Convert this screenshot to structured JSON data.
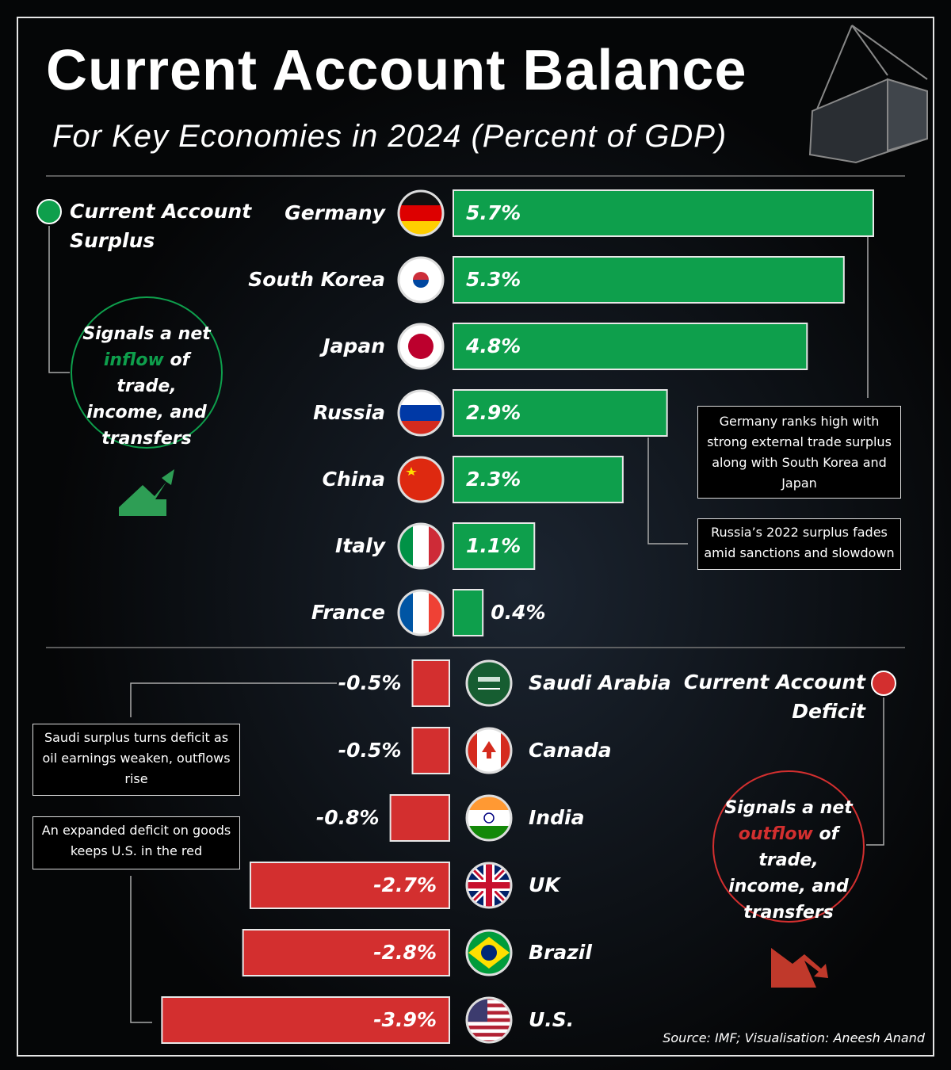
{
  "chart_data": {
    "type": "bar",
    "title": "Current Account Balance",
    "subtitle": "For Key Economies in 2024 (Percent of GDP)",
    "categories": [
      "Germany",
      "South Korea",
      "Japan",
      "Russia",
      "China",
      "Italy",
      "France",
      "Saudi Arabia",
      "Canada",
      "India",
      "UK",
      "Brazil",
      "U.S."
    ],
    "values": [
      5.7,
      5.3,
      4.8,
      2.9,
      2.3,
      1.1,
      0.4,
      -0.5,
      -0.5,
      -0.8,
      -2.7,
      -2.8,
      -3.9
    ],
    "value_labels": [
      "5.7%",
      "5.3%",
      "4.8%",
      "2.9%",
      "2.3%",
      "1.1%",
      "0.4%",
      "-0.5%",
      "-0.5%",
      "-0.8%",
      "-2.7%",
      "-2.8%",
      "-3.9%"
    ],
    "positive_color": "#0e9f4c",
    "negative_color": "#d32f2f",
    "legend": {
      "surplus": "Current Account Surplus",
      "deficit": "Current Account Deficit"
    },
    "surplus_note": {
      "before": "Signals a net",
      "highlight": "inflow",
      "after": "of trade, income, and transfers"
    },
    "deficit_note": {
      "before": "Signals a net",
      "highlight": "outflow",
      "after": "of trade, income, and transfers"
    },
    "annotations": [
      "Germany ranks high with strong external trade surplus along with South Korea and Japan",
      "Russia’s 2022 surplus fades amid sanctions and slowdown",
      "Saudi surplus turns deficit as oil earnings weaken, outflows rise",
      "An expanded deficit on goods keeps U.S. in the red"
    ],
    "source": "Source: IMF; Visualisation: Aneesh Anand"
  }
}
